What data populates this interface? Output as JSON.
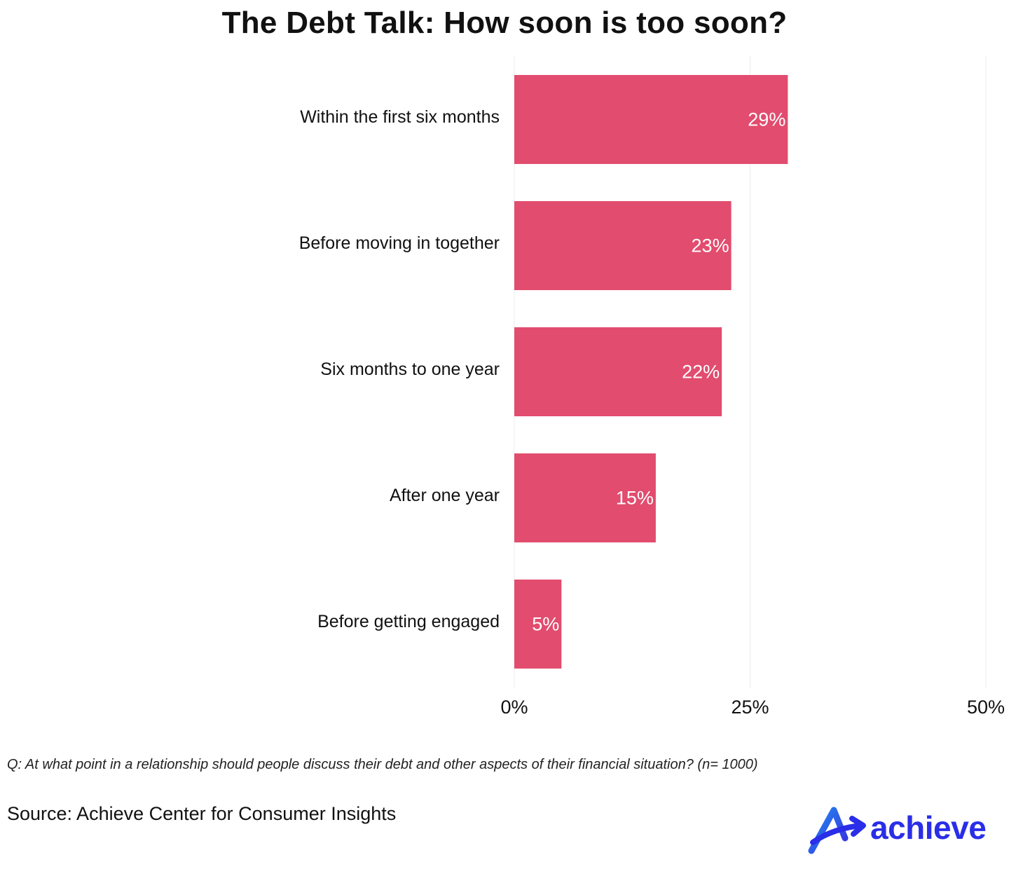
{
  "chart_data": {
    "type": "bar",
    "orientation": "horizontal",
    "title": "The Debt Talk: How soon is too soon?",
    "categories": [
      "Within the first six months",
      "Before moving in together",
      "Six months to one year",
      "After one year",
      "Before getting engaged"
    ],
    "values": [
      29,
      23,
      22,
      15,
      5
    ],
    "value_labels": [
      "29%",
      "23%",
      "22%",
      "15%",
      "5%"
    ],
    "xlim": [
      0,
      50
    ],
    "xticks": [
      0,
      25,
      50
    ],
    "xtick_labels": [
      "0%",
      "25%",
      "50%"
    ],
    "xlabel": "",
    "ylabel": "",
    "grid": true,
    "bar_color": "#e24c6e"
  },
  "question": "Q: At what point in a relationship should people discuss their debt and other aspects of their financial situation? (n= 1000)",
  "source": "Source: Achieve Center for Consumer Insights",
  "logo": {
    "text": "achieve",
    "icon": "achieve-logo-icon",
    "color": "#2a2ee8"
  }
}
